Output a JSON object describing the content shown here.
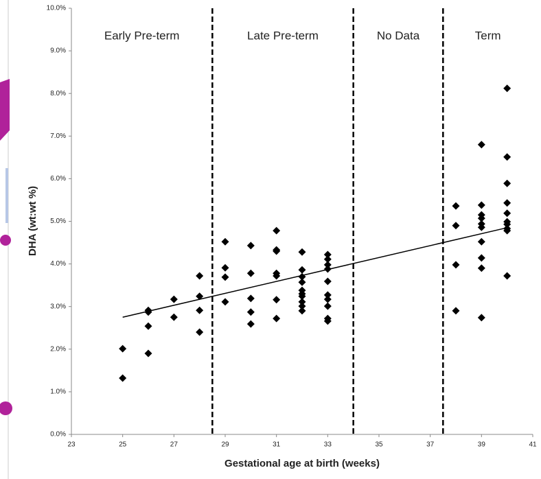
{
  "chart_data": {
    "type": "scatter",
    "xlabel": "Gestational age at birth (weeks)",
    "ylabel": "DHA (wt:wt %)",
    "xlim": [
      23,
      41
    ],
    "xticks": [
      23,
      25,
      27,
      29,
      31,
      33,
      35,
      37,
      39,
      41
    ],
    "ylim": [
      0,
      10
    ],
    "yticks": [
      {
        "value": 0,
        "label": "0.0%"
      },
      {
        "value": 1,
        "label": "1.0%"
      },
      {
        "value": 2,
        "label": "2.0%"
      },
      {
        "value": 3,
        "label": "3.0%"
      },
      {
        "value": 4,
        "label": "4.0%"
      },
      {
        "value": 5,
        "label": "5.0%"
      },
      {
        "value": 6,
        "label": "6.0%"
      },
      {
        "value": 7,
        "label": "7.0%"
      },
      {
        "value": 8,
        "label": "8.0%"
      },
      {
        "value": 9,
        "label": "9.0%"
      },
      {
        "value": 10,
        "label": "10.0%"
      }
    ],
    "color": "#000000",
    "x": [
      25,
      25,
      26,
      26,
      26,
      26,
      27,
      27,
      28,
      28,
      28,
      28,
      29,
      29,
      29,
      29,
      30,
      30,
      30,
      30,
      30,
      31,
      31,
      31,
      31,
      31,
      31,
      31,
      32,
      32,
      32,
      32,
      32,
      32,
      32,
      32,
      32,
      32,
      33,
      33,
      33,
      33,
      33,
      33,
      33,
      33,
      33,
      33,
      38,
      38,
      38,
      38,
      39,
      39,
      39,
      39,
      39,
      39,
      39,
      39,
      39,
      39,
      40,
      40,
      40,
      40,
      40,
      40,
      40,
      40,
      40,
      40
    ],
    "values": [
      2.01,
      1.32,
      2.91,
      2.87,
      2.54,
      1.9,
      3.17,
      2.75,
      3.72,
      3.24,
      2.91,
      2.4,
      4.52,
      3.91,
      3.69,
      3.11,
      4.43,
      3.78,
      3.19,
      2.87,
      2.59,
      4.78,
      4.33,
      4.3,
      3.78,
      3.72,
      3.16,
      2.72,
      4.28,
      3.86,
      3.7,
      3.57,
      3.38,
      3.3,
      3.24,
      3.11,
      3.01,
      2.9,
      4.22,
      4.11,
      3.98,
      3.88,
      3.59,
      3.27,
      3.17,
      3.01,
      2.72,
      2.66,
      5.36,
      4.9,
      3.98,
      2.9,
      6.8,
      5.38,
      5.15,
      5.07,
      4.94,
      4.86,
      4.52,
      4.14,
      3.9,
      2.74,
      8.12,
      6.51,
      5.89,
      5.43,
      5.19,
      4.99,
      4.93,
      4.83,
      4.78,
      3.72
    ],
    "trendline": {
      "x": [
        25,
        40
      ],
      "values": [
        2.75,
        4.85
      ]
    },
    "dividers": [
      28.5,
      34,
      37.5
    ],
    "regions": [
      "Early Pre-term",
      "Late Pre-term",
      "No Data",
      "Term"
    ]
  }
}
